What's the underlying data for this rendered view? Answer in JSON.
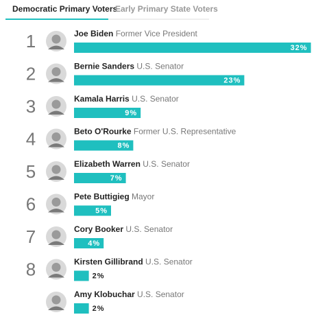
{
  "tabs": [
    "Democratic Primary Voters",
    "Early Primary State Voters"
  ],
  "active_tab": 0,
  "chart_data": {
    "type": "bar",
    "ranks": [
      1,
      2,
      3,
      4,
      5,
      6,
      7,
      8,
      null
    ],
    "categories": [
      "Joe Biden",
      "Bernie Sanders",
      "Kamala Harris",
      "Beto O'Rourke",
      "Elizabeth Warren",
      "Pete Buttigieg",
      "Cory Booker",
      "Kirsten Gillibrand",
      "Amy Klobuchar"
    ],
    "roles": [
      "Former Vice President",
      "U.S. Senator",
      "U.S. Senator",
      "Former U.S. Representative",
      "U.S. Senator",
      "Mayor",
      "U.S. Senator",
      "U.S. Senator",
      "U.S. Senator"
    ],
    "values": [
      32,
      23,
      9,
      8,
      7,
      5,
      4,
      2,
      2
    ],
    "value_labels": [
      "32%",
      "23%",
      "9%",
      "8%",
      "7%",
      "5%",
      "4%",
      "2%",
      "2%"
    ],
    "color": "#1fbfbf"
  }
}
